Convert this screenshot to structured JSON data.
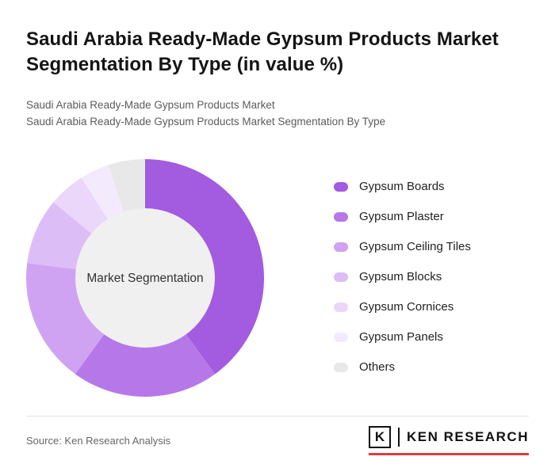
{
  "header": {
    "title": "Saudi Arabia Ready-Made Gypsum Products Market Segmentation By Type (in value %)",
    "subtitle1": "Saudi Arabia Ready-Made Gypsum Products Market",
    "subtitle2": "Saudi Arabia Ready-Made Gypsum Products Market Segmentation By Type"
  },
  "chart_data": {
    "type": "pie",
    "donut": true,
    "title": "Saudi Arabia Ready-Made Gypsum Products Market Segmentation By Type (in value %)",
    "center_label": "Market Segmentation",
    "center_fill": "#F0F0F0",
    "legend_position": "right",
    "start_angle_deg": 0,
    "series": [
      {
        "label": "Gypsum Boards",
        "value": 40,
        "color": "#A35BE0"
      },
      {
        "label": "Gypsum Plaster",
        "value": 20,
        "color": "#B678E8"
      },
      {
        "label": "Gypsum Ceiling Tiles",
        "value": 17,
        "color": "#CFA3F2"
      },
      {
        "label": "Gypsum Blocks",
        "value": 9,
        "color": "#DDBDF6"
      },
      {
        "label": "Gypsum Cornices",
        "value": 5,
        "color": "#EAD7FA"
      },
      {
        "label": "Gypsum Panels",
        "value": 4,
        "color": "#F3EBFD"
      },
      {
        "label": "Others",
        "value": 5,
        "color": "#E8E8E8"
      }
    ]
  },
  "footer": {
    "source": "Source: Ken Research Analysis",
    "logo_letter": "K",
    "logo_text": "KEN RESEARCH"
  }
}
